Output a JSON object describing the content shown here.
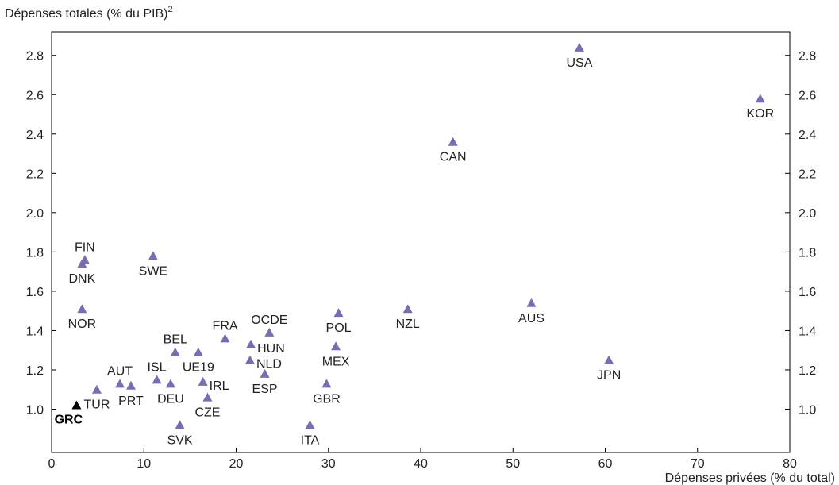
{
  "chart_data": {
    "type": "scatter",
    "ylabel": "Dépenses totales (% du PIB)",
    "ylabel_sup": "2",
    "xlabel": "Dépenses privées (% du total)",
    "xlim": [
      0,
      80
    ],
    "ylim": [
      0.78,
      2.92
    ],
    "x_ticks": [
      "0",
      "10",
      "20",
      "30",
      "40",
      "50",
      "60",
      "70",
      "80"
    ],
    "y_ticks": [
      "1.0",
      "1.2",
      "1.4",
      "1.6",
      "1.8",
      "2.0",
      "2.2",
      "2.4",
      "2.6",
      "2.8"
    ],
    "grid": false,
    "point_color": "#7b6bb5",
    "highlight_color": "#000000",
    "points": [
      {
        "label": "USA",
        "x": 57.2,
        "y": 2.84,
        "pos": "below"
      },
      {
        "label": "KOR",
        "x": 76.8,
        "y": 2.58,
        "pos": "below"
      },
      {
        "label": "CAN",
        "x": 43.5,
        "y": 2.36,
        "pos": "below"
      },
      {
        "label": "FIN",
        "x": 3.6,
        "y": 1.76,
        "pos": "above"
      },
      {
        "label": "DNK",
        "x": 3.3,
        "y": 1.74,
        "pos": "below"
      },
      {
        "label": "SWE",
        "x": 11.0,
        "y": 1.78,
        "pos": "below"
      },
      {
        "label": "NOR",
        "x": 3.3,
        "y": 1.51,
        "pos": "below"
      },
      {
        "label": "AUS",
        "x": 52.0,
        "y": 1.54,
        "pos": "below"
      },
      {
        "label": "NZL",
        "x": 38.6,
        "y": 1.51,
        "pos": "below"
      },
      {
        "label": "POL",
        "x": 31.1,
        "y": 1.49,
        "pos": "below"
      },
      {
        "label": "OCDE",
        "x": 23.6,
        "y": 1.39,
        "pos": "above"
      },
      {
        "label": "FRA",
        "x": 18.8,
        "y": 1.36,
        "pos": "above"
      },
      {
        "label": "HUN",
        "x": 21.6,
        "y": 1.33,
        "pos": "right"
      },
      {
        "label": "MEX",
        "x": 30.8,
        "y": 1.32,
        "pos": "below"
      },
      {
        "label": "BEL",
        "x": 13.4,
        "y": 1.29,
        "pos": "above"
      },
      {
        "label": "UE19",
        "x": 15.9,
        "y": 1.29,
        "pos": "below"
      },
      {
        "label": "NLD",
        "x": 21.5,
        "y": 1.25,
        "pos": "right"
      },
      {
        "label": "JPN",
        "x": 60.4,
        "y": 1.25,
        "pos": "below"
      },
      {
        "label": "ESP",
        "x": 23.1,
        "y": 1.18,
        "pos": "below"
      },
      {
        "label": "ISL",
        "x": 11.4,
        "y": 1.15,
        "pos": "above"
      },
      {
        "label": "IRL",
        "x": 16.4,
        "y": 1.14,
        "pos": "right"
      },
      {
        "label": "AUT",
        "x": 7.4,
        "y": 1.13,
        "pos": "above"
      },
      {
        "label": "PRT",
        "x": 8.6,
        "y": 1.12,
        "pos": "below"
      },
      {
        "label": "DEU",
        "x": 12.9,
        "y": 1.13,
        "pos": "below"
      },
      {
        "label": "GBR",
        "x": 29.8,
        "y": 1.13,
        "pos": "below"
      },
      {
        "label": "TUR",
        "x": 4.9,
        "y": 1.1,
        "pos": "below"
      },
      {
        "label": "CZE",
        "x": 16.9,
        "y": 1.06,
        "pos": "below"
      },
      {
        "label": "GRC",
        "x": 2.7,
        "y": 1.02,
        "pos": "below-bold",
        "highlight": true
      },
      {
        "label": "SVK",
        "x": 13.9,
        "y": 0.92,
        "pos": "below"
      },
      {
        "label": "ITA",
        "x": 28.0,
        "y": 0.92,
        "pos": "below"
      }
    ]
  }
}
